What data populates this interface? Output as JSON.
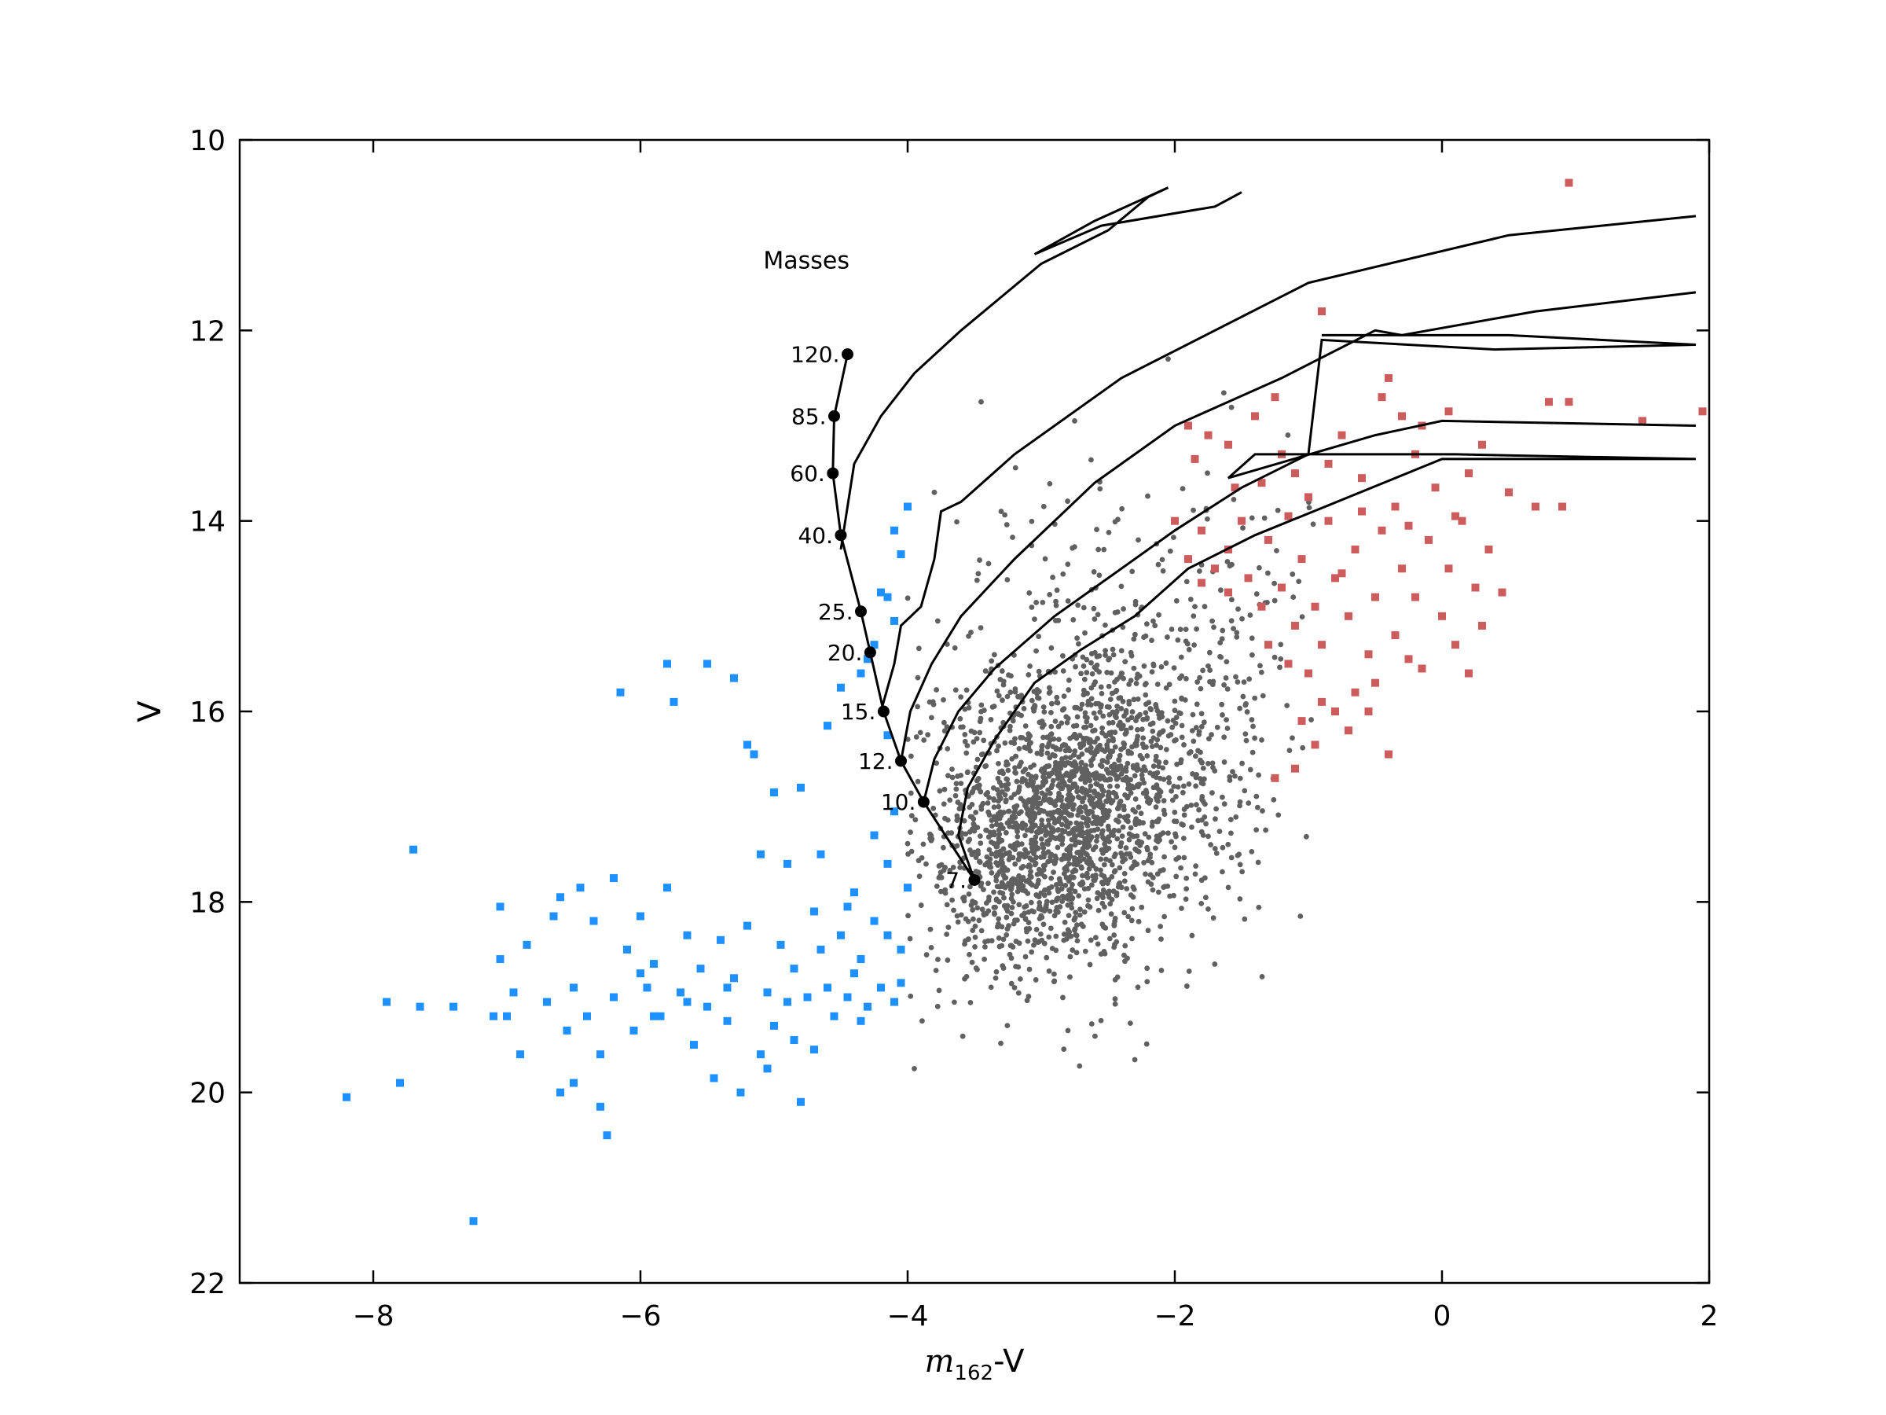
{
  "chart_data": {
    "type": "scatter",
    "title": "",
    "xlabel_math": "m",
    "xlabel_sub": "162",
    "xlabel_rest": "-V",
    "ylabel": "V",
    "xlim": [
      -9,
      2
    ],
    "ylim": [
      22,
      10
    ],
    "y_inverted": true,
    "xticks": [
      -8,
      -6,
      -4,
      -2,
      0,
      2
    ],
    "xtick_labels": [
      "−8",
      "−6",
      "−4",
      "−2",
      "0",
      "2"
    ],
    "yticks": [
      10,
      12,
      14,
      16,
      18,
      20,
      22
    ],
    "ytick_labels": [
      "10",
      "12",
      "14",
      "16",
      "18",
      "20",
      "22"
    ],
    "grid": false,
    "colors": {
      "blue": "#1e90ff",
      "gray": "#606060",
      "red": "#cd5c5c",
      "track": "#000000"
    },
    "series": [
      {
        "color_key": "blue",
        "marker": "square",
        "points": [
          [
            -8.2,
            20.05
          ],
          [
            -7.9,
            19.05
          ],
          [
            -7.8,
            19.9
          ],
          [
            -7.7,
            17.45
          ],
          [
            -7.65,
            19.1
          ],
          [
            -7.4,
            19.1
          ],
          [
            -7.25,
            21.35
          ],
          [
            -7.1,
            19.2
          ],
          [
            -7.05,
            18.05
          ],
          [
            -7.05,
            18.6
          ],
          [
            -7.0,
            19.2
          ],
          [
            -6.95,
            18.95
          ],
          [
            -6.9,
            19.6
          ],
          [
            -6.85,
            18.45
          ],
          [
            -6.7,
            19.05
          ],
          [
            -6.65,
            18.15
          ],
          [
            -6.6,
            20.0
          ],
          [
            -6.6,
            17.95
          ],
          [
            -6.55,
            19.35
          ],
          [
            -6.5,
            19.9
          ],
          [
            -6.5,
            18.9
          ],
          [
            -6.45,
            17.85
          ],
          [
            -6.4,
            19.2
          ],
          [
            -6.35,
            18.2
          ],
          [
            -6.3,
            20.15
          ],
          [
            -6.25,
            20.45
          ],
          [
            -6.2,
            19.0
          ],
          [
            -6.2,
            17.75
          ],
          [
            -6.15,
            15.8
          ],
          [
            -6.1,
            18.5
          ],
          [
            -6.05,
            19.35
          ],
          [
            -6.0,
            18.15
          ],
          [
            -5.95,
            18.9
          ],
          [
            -5.9,
            18.65
          ],
          [
            -5.85,
            19.2
          ],
          [
            -5.8,
            17.85
          ],
          [
            -5.8,
            15.5
          ],
          [
            -5.75,
            15.9
          ],
          [
            -5.7,
            18.95
          ],
          [
            -5.65,
            18.35
          ],
          [
            -5.6,
            19.5
          ],
          [
            -5.55,
            18.7
          ],
          [
            -5.5,
            19.1
          ],
          [
            -5.45,
            19.85
          ],
          [
            -5.4,
            18.4
          ],
          [
            -5.35,
            19.25
          ],
          [
            -5.3,
            18.8
          ],
          [
            -5.25,
            20.0
          ],
          [
            -5.2,
            18.25
          ],
          [
            -5.2,
            16.35
          ],
          [
            -5.15,
            16.45
          ],
          [
            -5.1,
            19.6
          ],
          [
            -5.1,
            17.5
          ],
          [
            -5.05,
            18.95
          ],
          [
            -5.0,
            16.85
          ],
          [
            -5.0,
            19.3
          ],
          [
            -4.95,
            18.45
          ],
          [
            -4.9,
            17.6
          ],
          [
            -4.9,
            19.05
          ],
          [
            -4.85,
            18.7
          ],
          [
            -4.8,
            16.8
          ],
          [
            -4.8,
            20.1
          ],
          [
            -4.75,
            19.0
          ],
          [
            -4.7,
            18.1
          ],
          [
            -4.7,
            19.55
          ],
          [
            -4.65,
            17.5
          ],
          [
            -4.6,
            18.9
          ],
          [
            -4.6,
            16.15
          ],
          [
            -4.55,
            19.2
          ],
          [
            -4.5,
            18.35
          ],
          [
            -4.5,
            15.75
          ],
          [
            -4.45,
            19.0
          ],
          [
            -4.4,
            17.9
          ],
          [
            -4.4,
            18.75
          ],
          [
            -4.35,
            18.6
          ],
          [
            -4.3,
            19.1
          ],
          [
            -4.3,
            15.45
          ],
          [
            -4.25,
            18.2
          ],
          [
            -4.2,
            18.9
          ],
          [
            -4.2,
            14.75
          ],
          [
            -4.15,
            17.6
          ],
          [
            -4.15,
            16.25
          ],
          [
            -4.1,
            19.05
          ],
          [
            -4.1,
            15.05
          ],
          [
            -4.05,
            18.5
          ],
          [
            -4.05,
            14.35
          ],
          [
            -4.0,
            17.85
          ],
          [
            -4.0,
            13.85
          ],
          [
            -5.5,
            15.5
          ],
          [
            -5.3,
            15.65
          ],
          [
            -6.3,
            19.6
          ],
          [
            -6.0,
            18.75
          ],
          [
            -5.9,
            19.2
          ],
          [
            -5.65,
            19.05
          ],
          [
            -5.35,
            18.9
          ],
          [
            -5.05,
            19.75
          ],
          [
            -4.85,
            19.45
          ],
          [
            -4.65,
            18.5
          ],
          [
            -4.45,
            18.05
          ],
          [
            -4.35,
            19.25
          ],
          [
            -4.25,
            17.3
          ],
          [
            -4.15,
            18.35
          ],
          [
            -4.1,
            17.05
          ],
          [
            -4.05,
            18.85
          ],
          [
            -4.35,
            15.6
          ],
          [
            -4.25,
            15.3
          ],
          [
            -4.15,
            14.8
          ],
          [
            -4.1,
            14.1
          ]
        ]
      },
      {
        "color_key": "gray",
        "marker": "circle",
        "distribution": {
          "count": 2400,
          "core": {
            "x_mean": -2.8,
            "y_mean": 17.15,
            "x_sd": 0.5,
            "y_sd": 0.75,
            "fraction": 0.7
          },
          "halo": {
            "x_mean": -2.6,
            "y_mean": 16.3,
            "x_sd": 0.75,
            "y_sd": 1.3
          },
          "x_range": [
            -4.0,
            -0.95
          ],
          "y_range": [
            12.5,
            19.8
          ]
        },
        "points": [
          [
            -3.45,
            12.75
          ],
          [
            -2.05,
            12.3
          ],
          [
            -2.75,
            12.95
          ],
          [
            -3.3,
            13.9
          ],
          [
            -3.8,
            13.7
          ],
          [
            -3.95,
            19.75
          ],
          [
            -3.2,
            18.9
          ],
          [
            -2.8,
            19.35
          ],
          [
            -2.2,
            18.3
          ],
          [
            -1.35,
            16.3
          ]
        ]
      },
      {
        "color_key": "red",
        "marker": "square",
        "points": [
          [
            0.95,
            10.45
          ],
          [
            -0.9,
            11.8
          ],
          [
            -1.9,
            13.0
          ],
          [
            -1.75,
            13.1
          ],
          [
            -1.6,
            13.2
          ],
          [
            -1.4,
            12.9
          ],
          [
            -1.25,
            12.7
          ],
          [
            -1.2,
            13.3
          ],
          [
            -1.1,
            13.5
          ],
          [
            -1.0,
            13.75
          ],
          [
            -0.85,
            13.4
          ],
          [
            -0.75,
            13.1
          ],
          [
            -0.6,
            13.55
          ],
          [
            -0.4,
            12.5
          ],
          [
            -0.3,
            12.9
          ],
          [
            -0.2,
            13.3
          ],
          [
            0.2,
            13.5
          ],
          [
            0.5,
            13.7
          ],
          [
            0.8,
            12.75
          ],
          [
            0.95,
            12.75
          ],
          [
            1.5,
            12.95
          ],
          [
            1.95,
            12.85
          ],
          [
            0.7,
            13.85
          ],
          [
            0.9,
            13.85
          ],
          [
            -2.0,
            14.0
          ],
          [
            -1.9,
            14.4
          ],
          [
            -1.8,
            14.1
          ],
          [
            -1.7,
            14.5
          ],
          [
            -1.6,
            14.3
          ],
          [
            -1.5,
            14.0
          ],
          [
            -1.45,
            14.6
          ],
          [
            -1.35,
            14.9
          ],
          [
            -1.3,
            14.2
          ],
          [
            -1.2,
            14.7
          ],
          [
            -1.1,
            15.1
          ],
          [
            -1.05,
            14.4
          ],
          [
            -0.95,
            14.9
          ],
          [
            -0.9,
            15.3
          ],
          [
            -0.85,
            14.0
          ],
          [
            -0.8,
            14.6
          ],
          [
            -0.7,
            15.0
          ],
          [
            -0.65,
            14.3
          ],
          [
            -0.55,
            15.4
          ],
          [
            -0.5,
            14.8
          ],
          [
            -0.45,
            14.1
          ],
          [
            -0.35,
            15.2
          ],
          [
            -0.3,
            14.5
          ],
          [
            -0.2,
            14.8
          ],
          [
            -0.15,
            15.55
          ],
          [
            -0.1,
            14.2
          ],
          [
            0.0,
            15.0
          ],
          [
            0.05,
            14.5
          ],
          [
            0.1,
            15.3
          ],
          [
            0.15,
            14.0
          ],
          [
            0.2,
            15.6
          ],
          [
            0.25,
            14.7
          ],
          [
            0.3,
            15.1
          ],
          [
            0.45,
            14.75
          ],
          [
            -1.0,
            15.6
          ],
          [
            -0.9,
            15.9
          ],
          [
            -1.05,
            16.1
          ],
          [
            -0.95,
            16.35
          ],
          [
            -1.1,
            16.6
          ],
          [
            -1.25,
            16.7
          ],
          [
            -0.7,
            16.2
          ],
          [
            -0.55,
            16.0
          ],
          [
            -0.4,
            16.45
          ],
          [
            -0.8,
            16.0
          ],
          [
            -1.15,
            15.5
          ],
          [
            -1.3,
            15.3
          ],
          [
            -1.6,
            14.75
          ],
          [
            -1.8,
            14.65
          ],
          [
            -0.35,
            13.85
          ],
          [
            -0.25,
            14.05
          ],
          [
            -0.05,
            13.65
          ],
          [
            0.1,
            13.95
          ],
          [
            0.35,
            14.3
          ],
          [
            0.3,
            13.2
          ],
          [
            -0.6,
            13.9
          ],
          [
            -0.75,
            14.55
          ],
          [
            -1.15,
            13.95
          ],
          [
            -1.35,
            13.6
          ],
          [
            -1.55,
            13.65
          ],
          [
            -1.85,
            13.35
          ],
          [
            -0.45,
            12.7
          ],
          [
            0.05,
            12.85
          ],
          [
            -0.15,
            13.0
          ],
          [
            -0.5,
            15.7
          ],
          [
            -0.25,
            15.45
          ],
          [
            -0.65,
            15.8
          ]
        ]
      }
    ],
    "mass_legend_title": "Masses",
    "zams": [
      {
        "label": "120.",
        "x": -4.45,
        "y": 12.25
      },
      {
        "label": "85.",
        "x": -4.55,
        "y": 12.9
      },
      {
        "label": "60.",
        "x": -4.56,
        "y": 13.5
      },
      {
        "label": "40.",
        "x": -4.5,
        "y": 14.15
      },
      {
        "label": "25.",
        "x": -4.35,
        "y": 14.95
      },
      {
        "label": "20.",
        "x": -4.28,
        "y": 15.38
      },
      {
        "label": "15.",
        "x": -4.18,
        "y": 16.0
      },
      {
        "label": "12.",
        "x": -4.05,
        "y": 16.52
      },
      {
        "label": "10.",
        "x": -3.88,
        "y": 16.95
      },
      {
        "label": "7.",
        "x": -3.5,
        "y": 17.77
      }
    ],
    "tracks": [
      [
        [
          -4.5,
          14.3
        ],
        [
          -4.4,
          13.4
        ],
        [
          -4.2,
          12.9
        ],
        [
          -3.95,
          12.45
        ],
        [
          -3.6,
          12.0
        ],
        [
          -3.0,
          11.3
        ],
        [
          -2.5,
          10.95
        ],
        [
          -2.2,
          10.6
        ],
        [
          -2.05,
          10.5
        ],
        [
          -2.6,
          10.85
        ],
        [
          -3.05,
          11.2
        ],
        [
          -2.55,
          10.9
        ],
        [
          -1.7,
          10.7
        ],
        [
          -1.5,
          10.55
        ]
      ],
      [
        [
          -4.2,
          16.0
        ],
        [
          -4.1,
          15.5
        ],
        [
          -4.05,
          15.1
        ],
        [
          -3.9,
          14.9
        ],
        [
          -3.8,
          14.4
        ],
        [
          -3.75,
          13.9
        ],
        [
          -3.6,
          13.8
        ],
        [
          -3.2,
          13.3
        ],
        [
          -2.4,
          12.5
        ],
        [
          -1.0,
          11.5
        ],
        [
          0.5,
          11.0
        ],
        [
          1.9,
          10.8
        ]
      ],
      [
        [
          -4.05,
          16.52
        ],
        [
          -3.98,
          16.0
        ],
        [
          -3.82,
          15.5
        ],
        [
          -3.6,
          15.0
        ],
        [
          -3.2,
          14.4
        ],
        [
          -2.6,
          13.6
        ],
        [
          -2.0,
          13.0
        ],
        [
          -1.2,
          12.5
        ],
        [
          -0.5,
          12.0
        ],
        [
          -0.3,
          12.05
        ],
        [
          0.7,
          11.8
        ],
        [
          1.9,
          11.6
        ]
      ],
      [
        [
          -3.88,
          16.95
        ],
        [
          -3.8,
          16.5
        ],
        [
          -3.62,
          16.0
        ],
        [
          -3.35,
          15.55
        ],
        [
          -2.9,
          15.0
        ],
        [
          -2.4,
          14.5
        ],
        [
          -2.0,
          14.1
        ],
        [
          -1.5,
          13.65
        ],
        [
          -1.0,
          13.3
        ],
        [
          -0.9,
          12.1
        ],
        [
          0.4,
          12.2
        ],
        [
          1.9,
          12.15
        ],
        [
          0.5,
          12.05
        ],
        [
          -0.9,
          12.05
        ]
      ],
      [
        [
          -3.5,
          17.77
        ],
        [
          -3.62,
          17.3
        ],
        [
          -3.55,
          16.8
        ],
        [
          -3.35,
          16.3
        ],
        [
          -3.05,
          15.7
        ],
        [
          -2.7,
          15.35
        ],
        [
          -2.3,
          15.0
        ],
        [
          -1.9,
          14.5
        ],
        [
          -1.4,
          14.15
        ],
        [
          -0.7,
          13.75
        ],
        [
          0.0,
          13.35
        ],
        [
          1.9,
          13.35
        ],
        [
          0.1,
          13.3
        ],
        [
          -1.4,
          13.3
        ],
        [
          -1.6,
          13.55
        ],
        [
          -0.5,
          13.1
        ],
        [
          0.0,
          12.95
        ],
        [
          1.9,
          13.0
        ]
      ]
    ]
  }
}
